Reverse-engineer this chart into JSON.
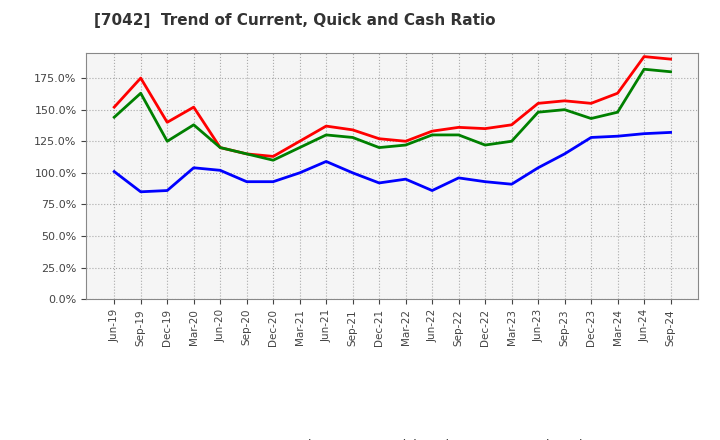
{
  "title": "[7042]  Trend of Current, Quick and Cash Ratio",
  "x_labels": [
    "Jun-19",
    "Sep-19",
    "Dec-19",
    "Mar-20",
    "Jun-20",
    "Sep-20",
    "Dec-20",
    "Mar-21",
    "Jun-21",
    "Sep-21",
    "Dec-21",
    "Mar-22",
    "Jun-22",
    "Sep-22",
    "Dec-22",
    "Mar-23",
    "Jun-23",
    "Sep-23",
    "Dec-23",
    "Mar-24",
    "Jun-24",
    "Sep-24"
  ],
  "current_ratio": [
    152,
    175,
    140,
    152,
    120,
    115,
    113,
    125,
    137,
    134,
    127,
    125,
    133,
    136,
    135,
    138,
    155,
    157,
    155,
    163,
    192,
    190
  ],
  "quick_ratio": [
    144,
    163,
    125,
    138,
    120,
    115,
    110,
    120,
    130,
    128,
    120,
    122,
    130,
    130,
    122,
    125,
    148,
    150,
    143,
    148,
    182,
    180
  ],
  "cash_ratio": [
    101,
    85,
    86,
    104,
    102,
    93,
    93,
    100,
    109,
    100,
    92,
    95,
    86,
    96,
    93,
    91,
    104,
    115,
    128,
    129,
    131,
    132
  ],
  "current_color": "#ff0000",
  "quick_color": "#008000",
  "cash_color": "#0000ff",
  "line_width": 2.0,
  "ylim": [
    0,
    195
  ],
  "yticks": [
    0,
    25,
    50,
    75,
    100,
    125,
    150,
    175
  ],
  "background_color": "#ffffff",
  "plot_bg_color": "#f5f5f5",
  "grid_color": "#aaaaaa",
  "legend_labels": [
    "Current Ratio",
    "Quick Ratio",
    "Cash Ratio"
  ]
}
